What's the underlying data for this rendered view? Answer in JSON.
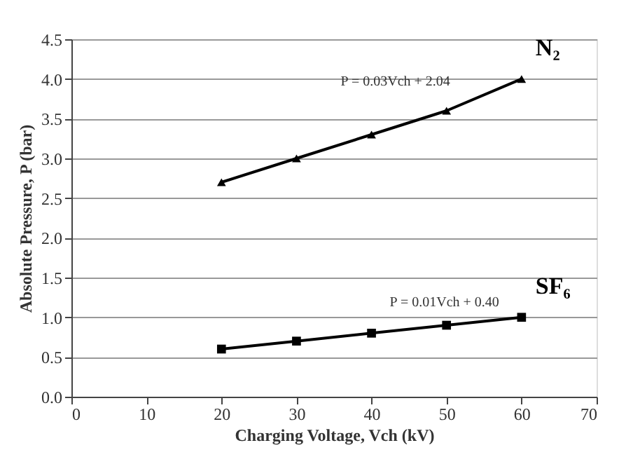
{
  "chart_data": {
    "type": "line",
    "xlabel": "Charging Voltage, Vch (kV)",
    "ylabel": "Absolute Pressure, P (bar)",
    "x": [
      20,
      30,
      40,
      50,
      60
    ],
    "series": [
      {
        "name": "N₂",
        "color": "#000000",
        "marker": "triangle",
        "values": [
          2.7,
          3.0,
          3.3,
          3.6,
          4.0
        ]
      },
      {
        "name": "SF₆",
        "color": "#000000",
        "marker": "square",
        "values": [
          0.6,
          0.7,
          0.8,
          0.9,
          1.0
        ]
      }
    ],
    "annotations": [
      "P = 0.03Vch + 2.04",
      "P = 0.01Vch + 0.40"
    ],
    "xlim": [
      0,
      70
    ],
    "xticks": [
      0,
      10,
      20,
      30,
      40,
      50,
      60,
      70
    ],
    "ylim": [
      0,
      4.5
    ],
    "yticks": [
      {
        "value": 0,
        "label": "0.0"
      },
      0.5,
      {
        "value": 1,
        "label": "1.0"
      },
      1.5,
      {
        "value": 2,
        "label": "2.0"
      },
      2.5,
      {
        "value": 3,
        "label": "3.0"
      },
      3.5,
      {
        "value": 4,
        "label": "4.0"
      },
      4.5
    ],
    "grid": "y",
    "legend": false,
    "line_style": "solid"
  }
}
